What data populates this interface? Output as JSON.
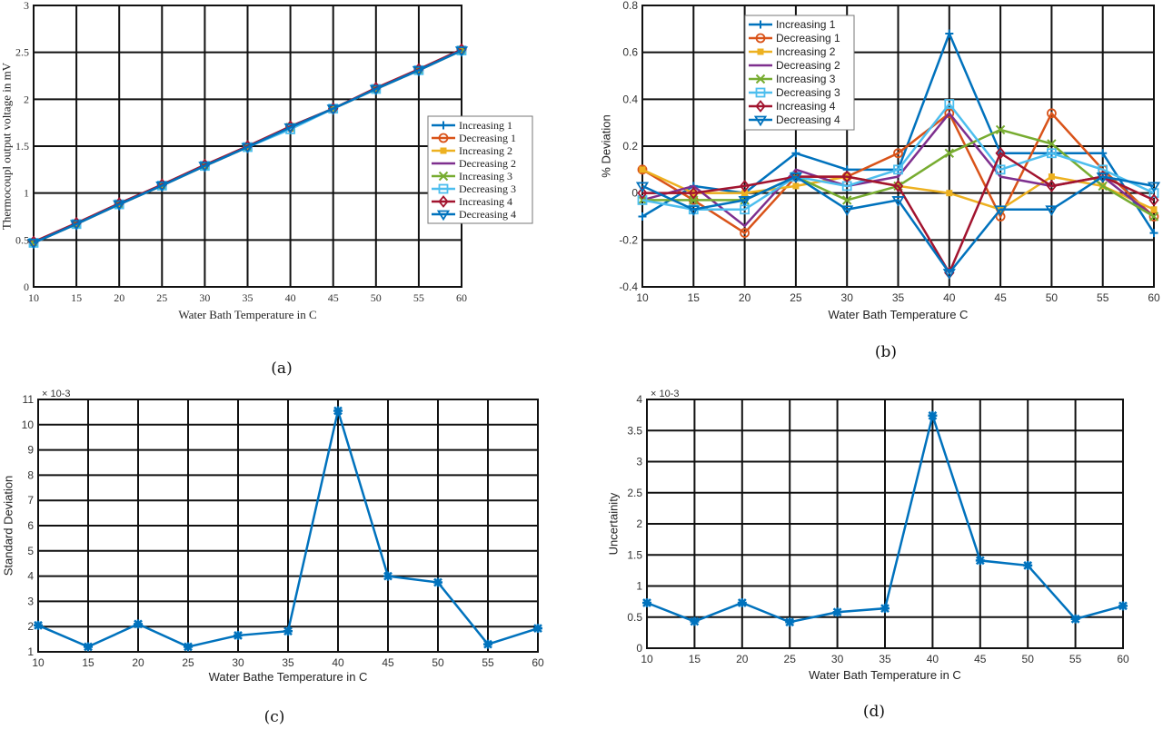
{
  "captions": [
    "(a)",
    "(b)",
    "(c)",
    "(d)"
  ],
  "chart_data": [
    {
      "type": "line",
      "xlabel": "Water Bath Temperature in C",
      "ylabel": "Thermocoupl output voltage in mV",
      "x": [
        10,
        15,
        20,
        25,
        30,
        35,
        40,
        45,
        50,
        55,
        60
      ],
      "xlim": [
        10,
        60
      ],
      "ylim": [
        0,
        3
      ],
      "yticks": [
        0,
        0.5,
        1,
        1.5,
        2,
        2.5,
        3
      ],
      "grid": true,
      "legend": "right",
      "series": [
        {
          "name": "Increasing 1",
          "color": "#0072BD",
          "marker": "plus",
          "values": [
            0.47,
            0.67,
            0.88,
            1.08,
            1.29,
            1.49,
            1.71,
            1.9,
            2.11,
            2.31,
            2.52
          ]
        },
        {
          "name": "Decreasing 1",
          "color": "#D95319",
          "marker": "circle",
          "values": [
            0.47,
            0.67,
            0.88,
            1.08,
            1.29,
            1.49,
            1.7,
            1.9,
            2.11,
            2.31,
            2.52
          ]
        },
        {
          "name": "Increasing 2",
          "color": "#EDB120",
          "marker": "square-filled",
          "values": [
            0.47,
            0.67,
            0.88,
            1.08,
            1.29,
            1.49,
            1.7,
            1.9,
            2.11,
            2.31,
            2.52
          ]
        },
        {
          "name": "Decreasing 2",
          "color": "#7E2F8E",
          "marker": "none",
          "values": [
            0.47,
            0.67,
            0.88,
            1.08,
            1.29,
            1.49,
            1.7,
            1.9,
            2.11,
            2.31,
            2.52
          ]
        },
        {
          "name": "Increasing 3",
          "color": "#77AC30",
          "marker": "x",
          "values": [
            0.47,
            0.67,
            0.88,
            1.08,
            1.29,
            1.49,
            1.7,
            1.9,
            2.11,
            2.31,
            2.52
          ]
        },
        {
          "name": "Decreasing 3",
          "color": "#4DBEEE",
          "marker": "square",
          "values": [
            0.47,
            0.67,
            0.88,
            1.08,
            1.29,
            1.49,
            1.68,
            1.9,
            2.11,
            2.31,
            2.52
          ]
        },
        {
          "name": "Increasing 4",
          "color": "#A2142F",
          "marker": "diamond",
          "values": [
            0.48,
            0.68,
            0.89,
            1.09,
            1.3,
            1.5,
            1.71,
            1.9,
            2.12,
            2.32,
            2.53
          ]
        },
        {
          "name": "Decreasing 4",
          "color": "#0072BD",
          "marker": "triangle-down",
          "values": [
            0.47,
            0.67,
            0.88,
            1.08,
            1.29,
            1.49,
            1.7,
            1.9,
            2.11,
            2.31,
            2.52
          ]
        }
      ]
    },
    {
      "type": "line",
      "xlabel": "Water Bath Temperature C",
      "ylabel": "% Deviation",
      "x": [
        10,
        15,
        20,
        25,
        30,
        35,
        40,
        45,
        50,
        55,
        60
      ],
      "xlim": [
        10,
        60
      ],
      "ylim": [
        -0.4,
        0.8
      ],
      "yticks": [
        -0.4,
        -0.2,
        0,
        0.2,
        0.4,
        0.6,
        0.8
      ],
      "grid": true,
      "legend": "top-left",
      "series": [
        {
          "name": "Increasing 1",
          "color": "#0072BD",
          "marker": "plus",
          "values": [
            -0.1,
            0.03,
            0.0,
            0.17,
            0.1,
            0.1,
            0.68,
            0.17,
            0.17,
            0.17,
            -0.17
          ]
        },
        {
          "name": "Decreasing 1",
          "color": "#D95319",
          "marker": "circle",
          "values": [
            0.1,
            -0.03,
            -0.17,
            0.07,
            0.07,
            0.17,
            0.34,
            -0.1,
            0.34,
            0.1,
            -0.1
          ]
        },
        {
          "name": "Increasing 2",
          "color": "#EDB120",
          "marker": "square-filled",
          "values": [
            0.1,
            0.0,
            0.0,
            0.03,
            0.07,
            0.03,
            0.0,
            -0.07,
            0.07,
            0.03,
            -0.07
          ]
        },
        {
          "name": "Decreasing 2",
          "color": "#7E2F8E",
          "marker": "none",
          "values": [
            -0.03,
            0.03,
            -0.14,
            0.1,
            0.03,
            0.07,
            0.34,
            0.07,
            0.03,
            0.07,
            -0.1
          ]
        },
        {
          "name": "Increasing 3",
          "color": "#77AC30",
          "marker": "x",
          "values": [
            -0.03,
            -0.03,
            -0.03,
            0.07,
            -0.03,
            0.03,
            0.17,
            0.27,
            0.21,
            0.03,
            -0.1
          ]
        },
        {
          "name": "Decreasing 3",
          "color": "#4DBEEE",
          "marker": "square",
          "values": [
            -0.03,
            -0.07,
            -0.07,
            0.07,
            0.03,
            0.1,
            0.38,
            0.1,
            0.17,
            0.1,
            0.0
          ]
        },
        {
          "name": "Increasing 4",
          "color": "#A2142F",
          "marker": "diamond",
          "values": [
            0.0,
            0.0,
            0.03,
            0.07,
            0.07,
            0.03,
            -0.34,
            0.17,
            0.03,
            0.07,
            -0.03
          ]
        },
        {
          "name": "Decreasing 4",
          "color": "#0072BD",
          "marker": "triangle-down",
          "values": [
            0.03,
            -0.07,
            -0.03,
            0.07,
            -0.07,
            -0.03,
            -0.34,
            -0.07,
            -0.07,
            0.07,
            0.03
          ]
        }
      ]
    },
    {
      "type": "line",
      "xlabel": "Water Bathe Temperature in C",
      "ylabel": "Standard Deviation",
      "exponent_label": "× 10-3",
      "x": [
        10,
        15,
        20,
        25,
        30,
        35,
        40,
        45,
        50,
        55,
        60
      ],
      "xlim": [
        10,
        60
      ],
      "ylim": [
        1,
        11
      ],
      "yticks": [
        1,
        2,
        3,
        4,
        5,
        6,
        7,
        8,
        9,
        10,
        11
      ],
      "grid": true,
      "series": [
        {
          "color": "#0072BD",
          "marker": "star",
          "values": [
            2.05,
            1.2,
            2.1,
            1.2,
            1.65,
            1.82,
            10.55,
            4.0,
            3.75,
            1.3,
            1.93
          ]
        }
      ]
    },
    {
      "type": "line",
      "xlabel": "Water Bath Temperature in C",
      "ylabel": "Uncertainity",
      "exponent_label": "× 10-3",
      "x": [
        10,
        15,
        20,
        25,
        30,
        35,
        40,
        45,
        50,
        55,
        60
      ],
      "xlim": [
        10,
        60
      ],
      "ylim": [
        0,
        4
      ],
      "yticks": [
        0,
        0.5,
        1,
        1.5,
        2,
        2.5,
        3,
        3.5,
        4
      ],
      "grid": true,
      "series": [
        {
          "color": "#0072BD",
          "marker": "star",
          "values": [
            0.73,
            0.43,
            0.73,
            0.42,
            0.58,
            0.64,
            3.74,
            1.41,
            1.33,
            0.47,
            0.68
          ]
        }
      ]
    }
  ]
}
